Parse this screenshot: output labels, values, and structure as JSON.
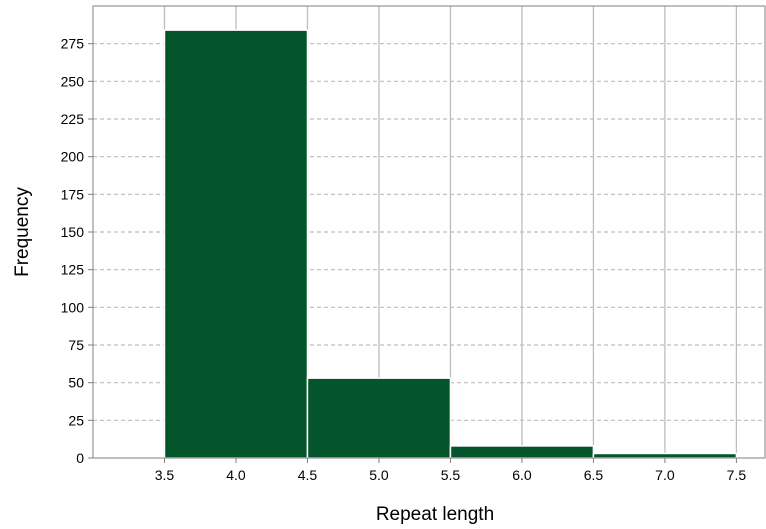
{
  "chart_data": {
    "type": "bar",
    "title": "",
    "xlabel": "Repeat length",
    "ylabel": "Frequency",
    "bins": [
      {
        "x0": 3.5,
        "x1": 4.5,
        "value": 284
      },
      {
        "x0": 4.5,
        "x1": 5.5,
        "value": 53
      },
      {
        "x0": 5.5,
        "x1": 6.5,
        "value": 8
      },
      {
        "x0": 6.5,
        "x1": 7.5,
        "value": 3
      }
    ],
    "xlim": [
      3.0,
      7.7
    ],
    "ylim": [
      0,
      300
    ],
    "xticks": [
      3.5,
      4.0,
      4.5,
      5.0,
      5.5,
      6.0,
      6.5,
      7.0,
      7.5
    ],
    "xtick_labels": [
      "3.5",
      "4.0",
      "4.5",
      "5.0",
      "5.5",
      "6.0",
      "6.5",
      "7.0",
      "7.5"
    ],
    "yticks": [
      0,
      25,
      50,
      75,
      100,
      125,
      150,
      175,
      200,
      225,
      250,
      275
    ],
    "ytick_labels": [
      "0",
      "25",
      "50",
      "75",
      "100",
      "125",
      "150",
      "175",
      "200",
      "225",
      "250",
      "275"
    ],
    "grid": {
      "vertical": "solid",
      "horizontal": "dashed"
    },
    "colors": {
      "bar": "#04542c",
      "bar_edge": "#ffffff",
      "grid": "#bdbdbd",
      "frame": "#808080"
    }
  }
}
